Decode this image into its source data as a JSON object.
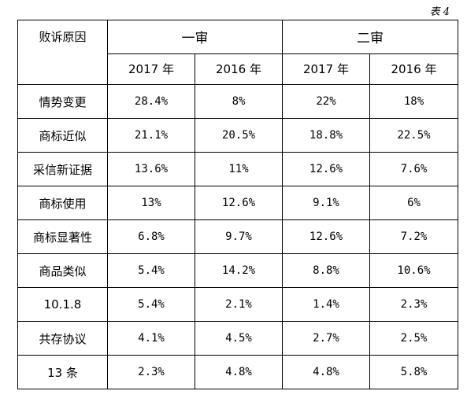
{
  "caption": "表 4",
  "header": {
    "corner": "败诉原因",
    "groups": [
      "一审",
      "二审"
    ],
    "years": [
      "2017 年",
      "2016 年",
      "2017 年",
      "2016 年"
    ]
  },
  "rows": [
    {
      "label": "情势变更",
      "values": [
        "28.4%",
        "8%",
        "22%",
        "18%"
      ]
    },
    {
      "label": "商标近似",
      "values": [
        "21.1%",
        "20.5%",
        "18.8%",
        "22.5%"
      ]
    },
    {
      "label": "采信新证据",
      "values": [
        "13.6%",
        "11%",
        "12.6%",
        "7.6%"
      ]
    },
    {
      "label": "商标使用",
      "values": [
        "13%",
        "12.6%",
        "9.1%",
        "6%"
      ]
    },
    {
      "label": "商标显著性",
      "values": [
        "6.8%",
        "9.7%",
        "12.6%",
        "7.2%"
      ]
    },
    {
      "label": "商品类似",
      "values": [
        "5.4%",
        "14.2%",
        "8.8%",
        "10.6%"
      ]
    },
    {
      "label": "10.1.8",
      "values": [
        "5.4%",
        "2.1%",
        "1.4%",
        "2.3%"
      ]
    },
    {
      "label": "共存协议",
      "values": [
        "4.1%",
        "4.5%",
        "2.7%",
        "2.5%"
      ]
    },
    {
      "label": "13 条",
      "values": [
        "2.3%",
        "4.8%",
        "4.8%",
        "5.8%"
      ]
    }
  ]
}
